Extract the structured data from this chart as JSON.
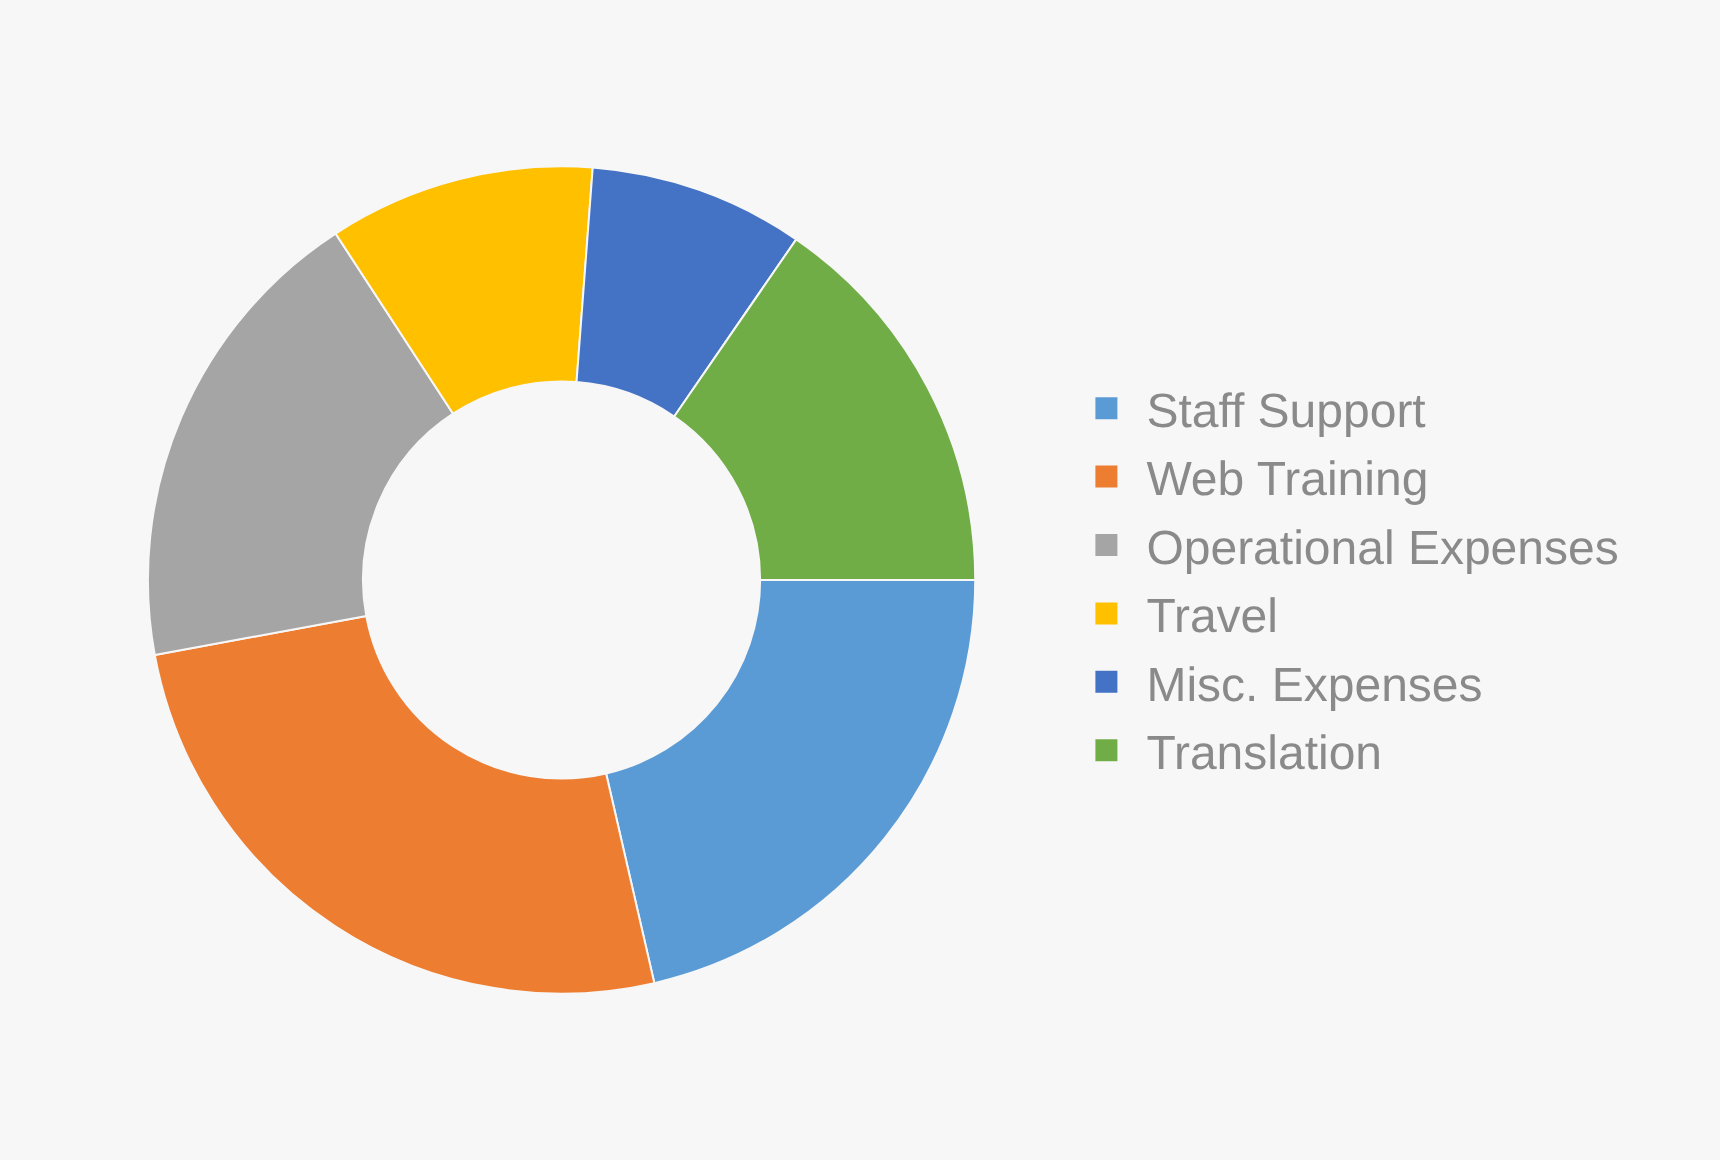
{
  "chart_data": {
    "type": "donut",
    "categories": [
      "Staff Support",
      "Web Training",
      "Operational Expenses",
      "Travel",
      "Misc. Expenses",
      "Translation"
    ],
    "values": [
      21.4,
      25.7,
      18.7,
      10.4,
      8.4,
      15.4
    ],
    "colors": [
      "#5b9bd5",
      "#ed7d31",
      "#a5a5a5",
      "#ffc000",
      "#4472c4",
      "#70ad47"
    ],
    "legend": "right"
  }
}
